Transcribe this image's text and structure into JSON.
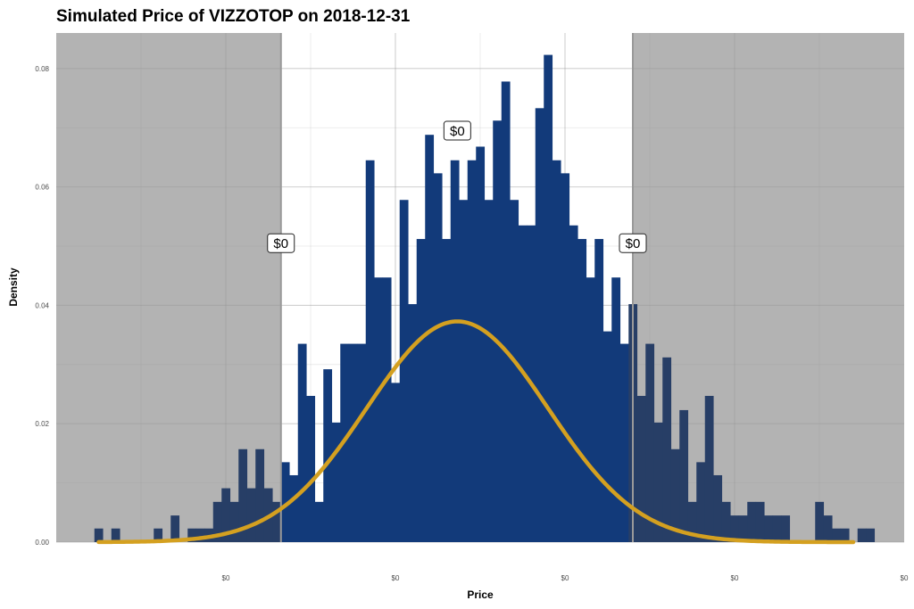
{
  "chart_data": {
    "type": "histogram",
    "title": "Simulated Price of VIZZOTOP on 2018-12-31",
    "xlabel": "Price",
    "ylabel": "Density",
    "xlim": [
      0,
      100
    ],
    "ylim": [
      0,
      0.086
    ],
    "x_ticks": [
      {
        "value": 20,
        "label": "$0"
      },
      {
        "value": 40,
        "label": "$0"
      },
      {
        "value": 60,
        "label": "$0"
      },
      {
        "value": 80,
        "label": "$0"
      },
      {
        "value": 100,
        "label": "$0"
      }
    ],
    "y_ticks": [
      {
        "value": 0,
        "label": "0.00"
      },
      {
        "value": 0.02,
        "label": "0.02"
      },
      {
        "value": 0.04,
        "label": "0.04"
      },
      {
        "value": 0.06,
        "label": "0.06"
      },
      {
        "value": 0.08,
        "label": "0.08"
      }
    ],
    "grid": true,
    "bin_start": 4.5,
    "bin_width": 1.0,
    "densities": [
      0.0023,
      0.0,
      0.0023,
      0.0,
      0.0,
      0.0,
      0.0,
      0.0023,
      0.0,
      0.0045,
      0.0,
      0.0023,
      0.0023,
      0.0023,
      0.0068,
      0.0091,
      0.0068,
      0.0157,
      0.0091,
      0.0157,
      0.0091,
      0.0068,
      0.0135,
      0.0113,
      0.0335,
      0.0247,
      0.0068,
      0.0292,
      0.0202,
      0.0335,
      0.0335,
      0.0335,
      0.0645,
      0.0447,
      0.0447,
      0.0269,
      0.0578,
      0.0402,
      0.0512,
      0.0688,
      0.0623,
      0.0512,
      0.0645,
      0.0578,
      0.0645,
      0.0668,
      0.0578,
      0.0712,
      0.0778,
      0.0578,
      0.0535,
      0.0535,
      0.0733,
      0.0823,
      0.0645,
      0.0623,
      0.0535,
      0.0512,
      0.0447,
      0.0512,
      0.0356,
      0.0447,
      0.0335,
      0.0402,
      0.0247,
      0.0335,
      0.0202,
      0.0312,
      0.0157,
      0.0223,
      0.0068,
      0.0135,
      0.0247,
      0.0113,
      0.0068,
      0.0045,
      0.0045,
      0.0068,
      0.0068,
      0.0045,
      0.0045,
      0.0045,
      0.0,
      0.0,
      0.0,
      0.0068,
      0.0045,
      0.0023,
      0.0023,
      0.0,
      0.0023,
      0.0023,
      0.0,
      0.0,
      0.0,
      0.0,
      0.0,
      0.0,
      0.0,
      0.0023
    ],
    "bar_color": "#123a7a",
    "shaded_bar_color": "#273e66",
    "shade_color": "#b3b3b3",
    "shaded_regions": [
      [
        0,
        26.5
      ],
      [
        68,
        100
      ]
    ],
    "normal_curve": {
      "mean": 47.3,
      "sd": 10.7,
      "x_range": [
        5,
        94
      ],
      "color": "#d4a020"
    },
    "vlines": [
      {
        "x": 26.5,
        "color": "#999999"
      },
      {
        "x": 68.0,
        "color": "#999999"
      }
    ],
    "annotations": [
      {
        "x": 26.5,
        "y": 0.0505,
        "label": "$0"
      },
      {
        "x": 47.3,
        "y": 0.0695,
        "label": "$0"
      },
      {
        "x": 68.0,
        "y": 0.0505,
        "label": "$0"
      }
    ]
  }
}
